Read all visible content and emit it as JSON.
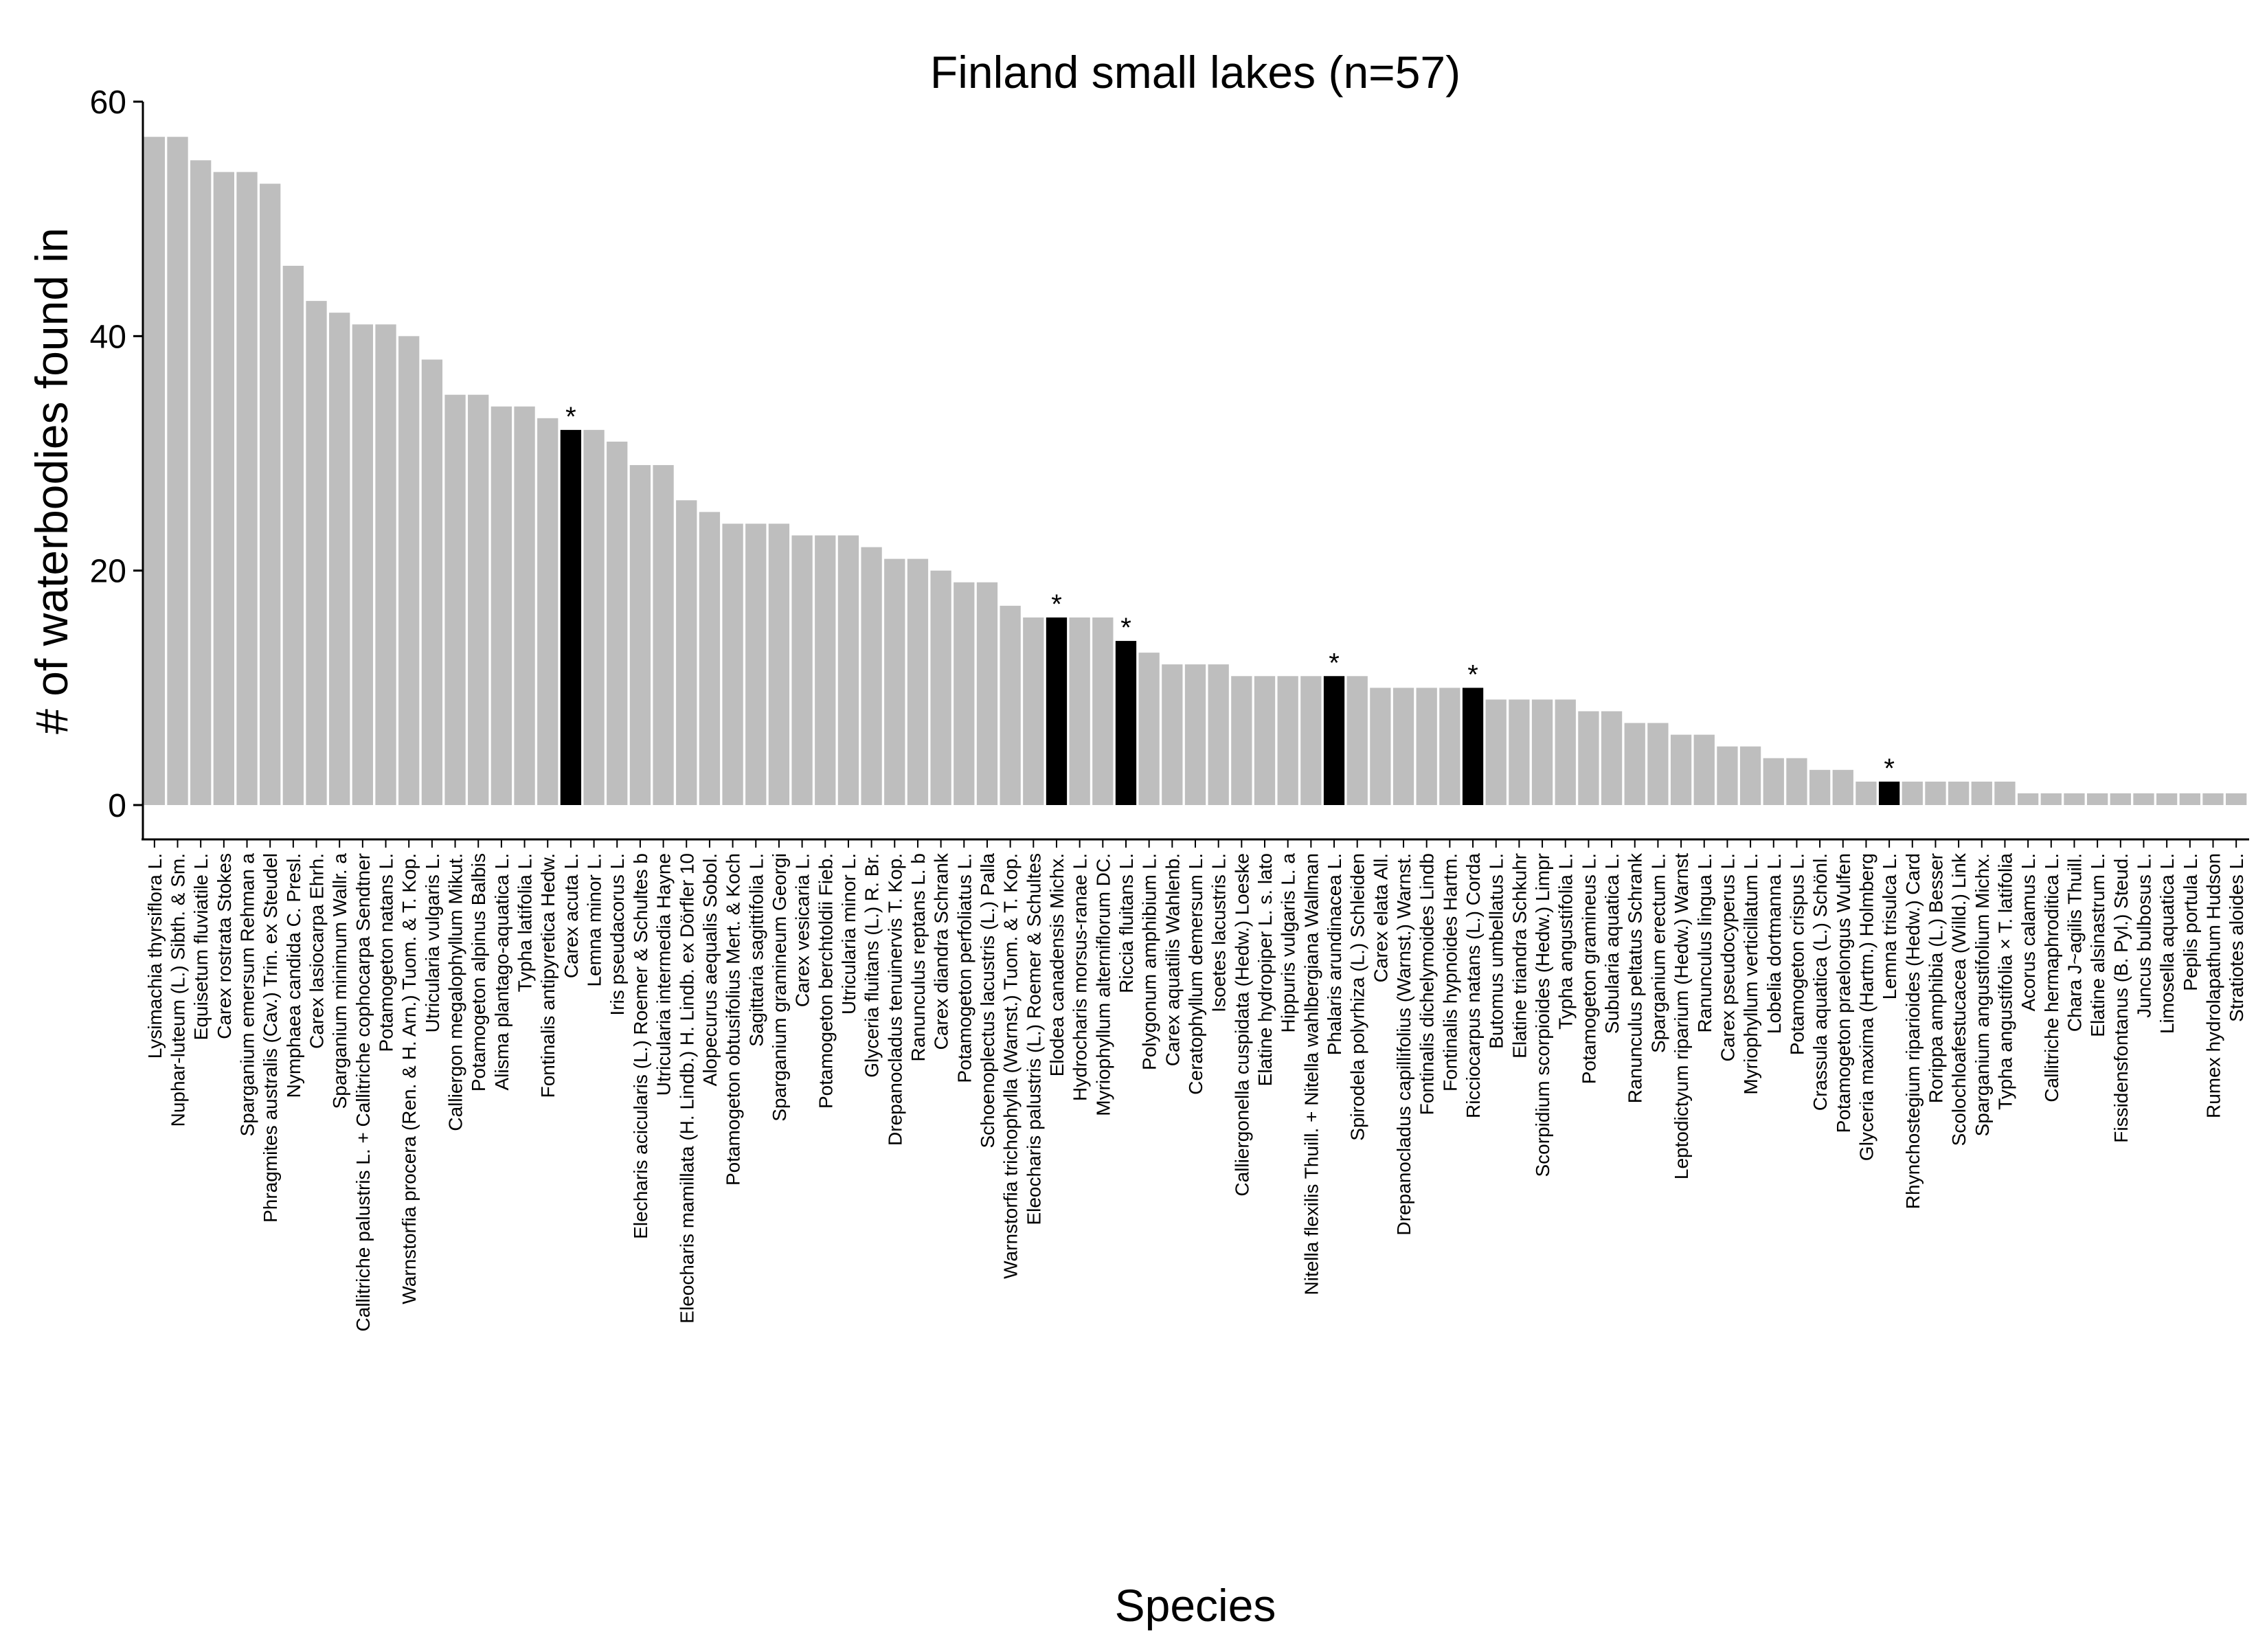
{
  "chart_data": {
    "type": "bar",
    "title": "Finland small lakes (n=57)",
    "xlabel": "Species",
    "ylabel": "# of waterbodies found in",
    "ylim": [
      0,
      60
    ],
    "yticks": [
      0,
      20,
      40,
      60
    ],
    "grid": false,
    "legend": "none",
    "colors": {
      "default": "#bebebe",
      "highlight": "#000000"
    },
    "highlight_marker": "*",
    "categories": [
      "Lysimachia thyrsiflora L.",
      "Nuphar-luteum (L.) Sibth. & Sm.",
      "Equisetum fluviatile L.",
      "Carex rostrata Stokes",
      "Sparganium emersum Rehman a",
      "Phragmites australis (Cav.) Trin. ex Steudel",
      "Nymphaea candida C. Presl.",
      "Carex lasiocarpa Ehrh.",
      "Sparganium minimum Wallr. a",
      "Callitriche palustris L. + Callitriche cophocarpa Sendtner",
      "Potamogeton natans L.",
      "Warnstorfia procera (Ren. & H. Arn.) Tuom. & T. Kop.",
      "Utricularia vulgaris L.",
      "Calliergon megalophyllum Mikut.",
      "Potamogeton alpinus Balbis",
      "Alisma plantago-aquatica L.",
      "Typha latifolia L.",
      "Fontinalis antipyretica Hedw.",
      "Carex acuta L.",
      "Lemna minor L.",
      "Iris pseudacorus L.",
      "Elecharis acicularis (L.) Roemer & Schultes b",
      "Utricularia intermedia Hayne",
      "Eleocharis mamillata (H. Lindb.) H. Lindb. ex Dörfler 10",
      "Alopecurus aequalis Sobol.",
      "Potamogeton obtusifolius Mert. & Koch",
      "Sagittaria sagittifolia L.",
      "Sparganium gramineum Georgi",
      "Carex vesicaria L.",
      "Potamogeton berchtoldii Fieb.",
      "Utricularia minor L.",
      "Glyceria fluitans (L.) R. Br.",
      "Drepanocladus tenuinervis T. Kop.",
      "Ranunculus reptans L. b",
      "Carex diandra Schrank",
      "Potamogeton perfoliatus L.",
      "Schoenoplectus lacustris (L.) Palla",
      "Warnstorfia trichophylla (Warnst.) Tuom. & T. Kop.",
      "Eleocharis palustris (L.) Roemer & Schultes",
      "Elodea canadensis Michx.",
      "Hydrocharis morsus-ranae L.",
      "Myriophyllum alterniflorum DC.",
      "Riccia fluitans L.",
      "Polygonum amphibium L.",
      "Carex aquatilis Wahlenb.",
      "Ceratophyllum demersum L.",
      "Isoetes lacustris L.",
      "Calliergonella cuspidata (Hedw.) Loeske",
      "Elatine hydropiper L. s. lato",
      "Hippuris vulgaris L. a",
      "Nitella flexilis Thuill. + Nitella wahlbergiana Wallman",
      "Phalaris arundinacea L.",
      "Spirodela polyrhiza (L.) Schleiden",
      "Carex elata All.",
      "Drepanocladus capillifolius (Warnst.) Warnst.",
      "Fontinalis dichelymoides Lindb",
      "Fontinalis hypnoides Hartm.",
      "Ricciocarpus natans (L.) Corda",
      "Butomus umbellatus L.",
      "Elatine triandra Schkuhr",
      "Scorpidium scorpioides (Hedw.) Limpr",
      "Typha angustifolia L.",
      "Potamogeton gramineus L.",
      "Subularia aquatica L.",
      "Ranunculus peltatus Schrank",
      "Sparganium erectum L.",
      "Leptodictyum riparium (Hedw.) Warnst",
      "Ranunculus lingua L.",
      "Carex pseudocyperus L.",
      "Myriophyllum verticillatum L.",
      "Lobelia dortmanna L.",
      "Potamogeton crispus L.",
      "Crassula aquatica (L.) Schönl.",
      "Potamogeton praelongus Wulfen",
      "Glyceria maxima (Hartm.) Holmberg",
      "Lemna trisulca L.",
      "Rhynchostegium riparioides (Hedw.) Card",
      "Rorippa amphibia (L.) Besser",
      "Scolochloafestucacea (Willd.) Link",
      "Sparganium angustifolium Michx.",
      "Typha angustifolia × T. latifolia",
      "Acorus calamus L.",
      "Callitriche hermaphroditica L.",
      "Chara J~agilis Thuill.",
      "Elatine alsinastrum L.",
      "Fissidensfontanus (B. Pyl.) Steud.",
      "Juncus bulbosus L.",
      "Limosella aquatica L.",
      "Peplis portula L.",
      "Rumex hydrolapathum Hudson",
      "Stratiotes aloides L."
    ],
    "values": [
      57,
      57,
      55,
      54,
      54,
      53,
      46,
      43,
      42,
      41,
      41,
      40,
      38,
      35,
      35,
      34,
      34,
      33,
      32,
      32,
      31,
      29,
      29,
      26,
      25,
      24,
      24,
      24,
      23,
      23,
      23,
      22,
      21,
      21,
      20,
      19,
      19,
      17,
      16,
      16,
      16,
      16,
      14,
      13,
      12,
      12,
      12,
      11,
      11,
      11,
      11,
      11,
      11,
      10,
      10,
      10,
      10,
      10,
      9,
      9,
      9,
      9,
      8,
      8,
      7,
      7,
      6,
      6,
      5,
      5,
      4,
      4,
      3,
      3,
      2,
      2,
      2,
      2,
      2,
      2,
      2,
      1,
      1,
      1,
      1,
      1,
      1,
      1,
      1,
      1,
      1
    ],
    "highlighted": [
      "Carex acuta L.",
      "Elodea canadensis Michx.",
      "Riccia fluitans L.",
      "Phalaris arundinacea L.",
      "Ricciocarpus natans (L.) Corda",
      "Lemna trisulca L."
    ]
  }
}
